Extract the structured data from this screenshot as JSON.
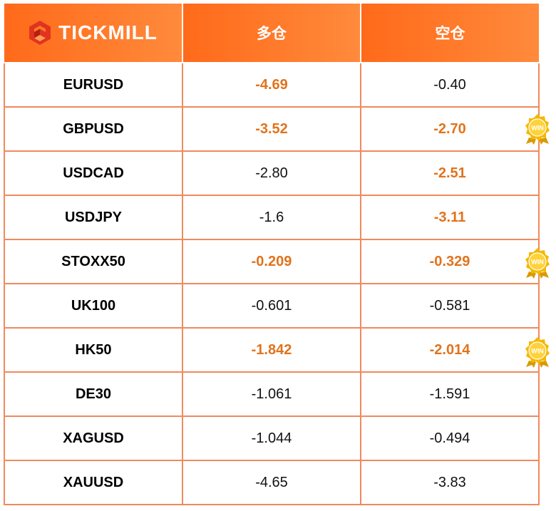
{
  "brand": {
    "name": "TICKMILL"
  },
  "columns": {
    "long": "多仓",
    "short": "空仓"
  },
  "rows": [
    {
      "symbol": "EURUSD",
      "long": "-4.69",
      "short": "-0.40",
      "long_hi": true,
      "short_hi": false,
      "win": false
    },
    {
      "symbol": "GBPUSD",
      "long": "-3.52",
      "short": "-2.70",
      "long_hi": true,
      "short_hi": true,
      "win": true
    },
    {
      "symbol": "USDCAD",
      "long": "-2.80",
      "short": "-2.51",
      "long_hi": false,
      "short_hi": true,
      "win": false
    },
    {
      "symbol": "USDJPY",
      "long": "-1.6",
      "short": "-3.11",
      "long_hi": false,
      "short_hi": true,
      "win": false
    },
    {
      "symbol": "STOXX50",
      "long": "-0.209",
      "short": "-0.329",
      "long_hi": true,
      "short_hi": true,
      "win": true
    },
    {
      "symbol": "UK100",
      "long": "-0.601",
      "short": "-0.581",
      "long_hi": false,
      "short_hi": false,
      "win": false
    },
    {
      "symbol": "HK50",
      "long": "-1.842",
      "short": "-2.014",
      "long_hi": true,
      "short_hi": true,
      "win": true
    },
    {
      "symbol": "DE30",
      "long": "-1.061",
      "short": "-1.591",
      "long_hi": false,
      "short_hi": false,
      "win": false
    },
    {
      "symbol": "XAGUSD",
      "long": "-1.044",
      "short": "-0.494",
      "long_hi": false,
      "short_hi": false,
      "win": false
    },
    {
      "symbol": "XAUUSD",
      "long": "-4.65",
      "short": "-3.83",
      "long_hi": false,
      "short_hi": false,
      "win": false
    }
  ],
  "badge": {
    "label": "WIN",
    "icon": "win-badge-icon"
  },
  "colors": {
    "header": "#ff7a2a",
    "highlight": "#e0731c",
    "border": "#f08a5d",
    "badge": "#f5b800"
  }
}
